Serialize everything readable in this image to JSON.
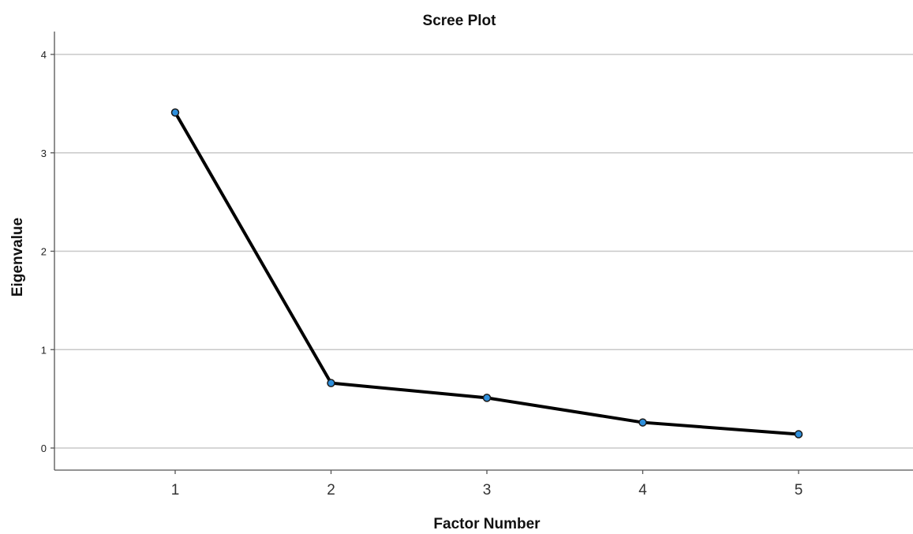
{
  "chart_data": {
    "type": "line",
    "title": "Scree Plot",
    "xlabel": "Factor Number",
    "ylabel": "Eigenvalue",
    "x": [
      1,
      2,
      3,
      4,
      5
    ],
    "series": [
      {
        "values": [
          3.41,
          0.66,
          0.51,
          0.26,
          0.14
        ]
      }
    ],
    "xticks": [
      "1",
      "2",
      "3",
      "4",
      "5"
    ],
    "yticks": [
      0,
      1,
      2,
      3,
      4
    ],
    "ylim": [
      -0.22,
      4.2
    ],
    "xlim": [
      0.22,
      5.73
    ],
    "grid": "horizontal",
    "legend": "none",
    "line_color": "#000000",
    "marker_color": "#2e8fdc"
  }
}
